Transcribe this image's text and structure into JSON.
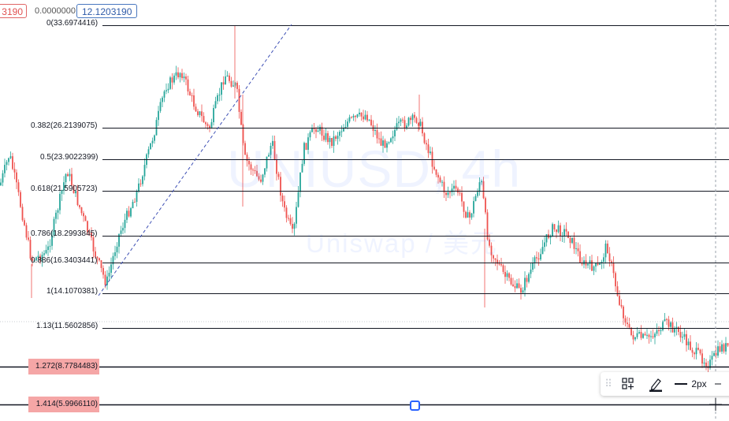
{
  "header": {
    "red_value": "3190",
    "zero_value": "0.0000000",
    "blue_value": "12.1203190"
  },
  "watermark": {
    "title": "UNIUSD, 4h",
    "subtitle": "Uniswap / 美元"
  },
  "fib_levels": [
    {
      "label": "0(33.6974416)",
      "value": 33.6974416,
      "highlight": false
    },
    {
      "label": "0.382(26.2139075)",
      "value": 26.2139075,
      "highlight": false
    },
    {
      "label": "0.5(23.9022399)",
      "value": 23.9022399,
      "highlight": false
    },
    {
      "label": "0.618(21.5905723)",
      "value": 21.5905723,
      "highlight": false
    },
    {
      "label": "0.786(18.2993845)",
      "value": 18.2993845,
      "highlight": false
    },
    {
      "label": "0.886(16.3403441)",
      "value": 16.3403441,
      "highlight": false
    },
    {
      "label": "1(14.1070381)",
      "value": 14.1070381,
      "highlight": false
    },
    {
      "label": "1.13(11.5602856)",
      "value": 11.5602856,
      "highlight": false
    },
    {
      "label": "1.272(8.7784483)",
      "value": 8.7784483,
      "highlight": true
    },
    {
      "label": "1.414(5.9966110)",
      "value": 5.996611,
      "highlight": true
    }
  ],
  "toolbar": {
    "grip_icon": "drag-handle-icon",
    "template_icon": "template-icon",
    "color_icon": "pencil-icon",
    "line_width_icon": "line-width-icon",
    "line_width_label": "2px",
    "more_icon": "dash-icon"
  },
  "colors": {
    "up": "#26a69a",
    "down": "#ef5350",
    "fib_line": "#131722",
    "trend_line": "#3f51b5",
    "highlight": "#f5a6a6"
  }
}
